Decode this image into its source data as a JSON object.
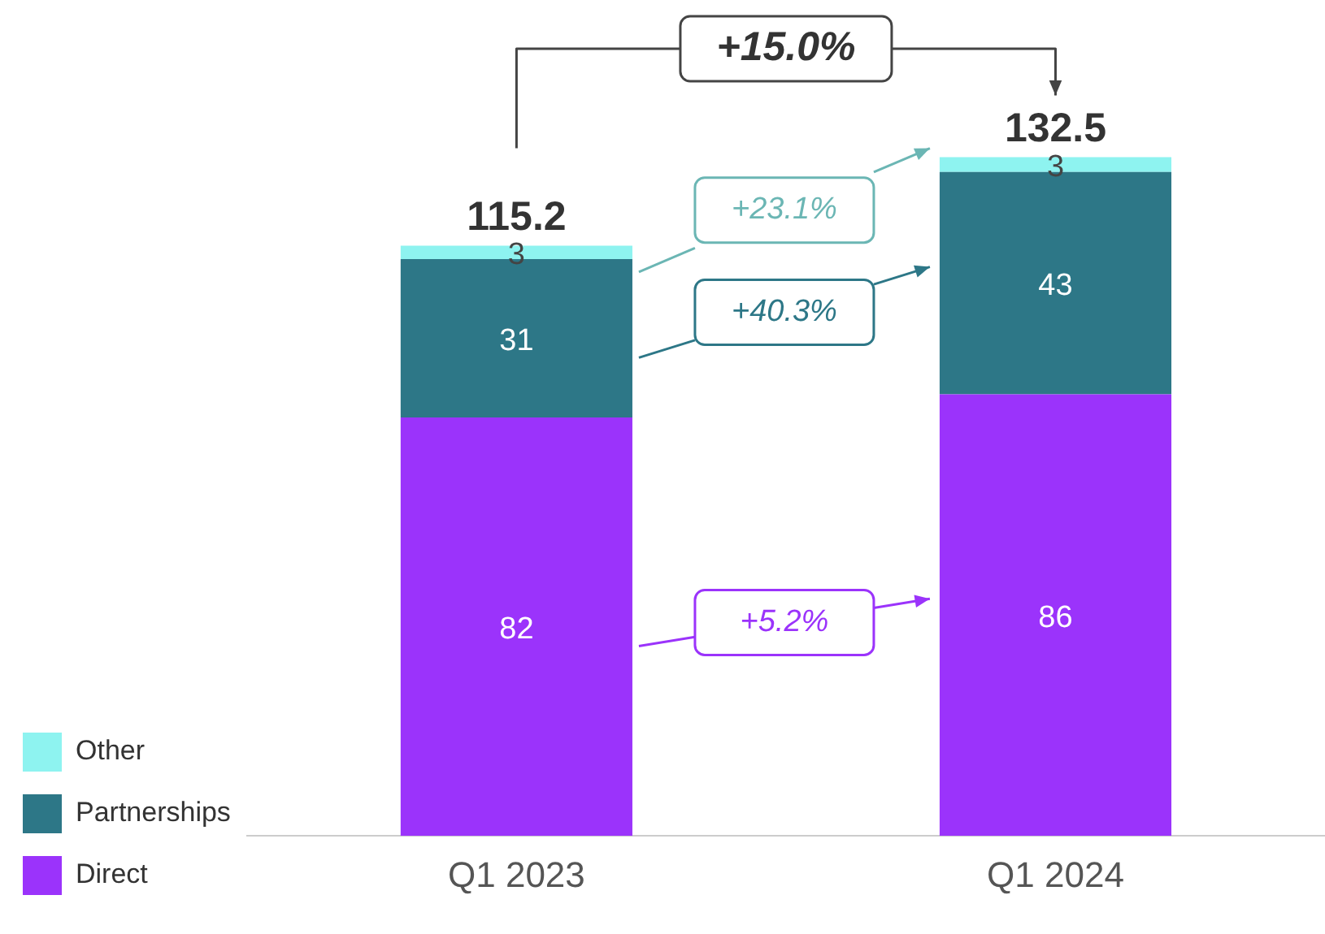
{
  "chart_data": {
    "type": "bar",
    "stacked": true,
    "categories": [
      "Q1 2023",
      "Q1 2024"
    ],
    "series": [
      {
        "name": "Direct",
        "color": "#9b33fb",
        "values": [
          81.7,
          86.2
        ],
        "value_labels": [
          "82",
          "86"
        ]
      },
      {
        "name": "Partnerships",
        "color": "#2d7787",
        "values": [
          30.9,
          43.4
        ],
        "value_labels": [
          "31",
          "43"
        ]
      },
      {
        "name": "Other",
        "color": "#8ef3f0",
        "values": [
          2.6,
          2.9
        ],
        "value_labels": [
          "3",
          "3"
        ]
      }
    ],
    "totals": [
      "115.2",
      "132.5"
    ],
    "ylim": [
      0,
      160
    ],
    "tick_labels": "x",
    "grid": false,
    "legend": "left",
    "annotations": [
      "+15.0%",
      "+23.1%",
      "+40.3%",
      "+5.2%"
    ]
  }
}
